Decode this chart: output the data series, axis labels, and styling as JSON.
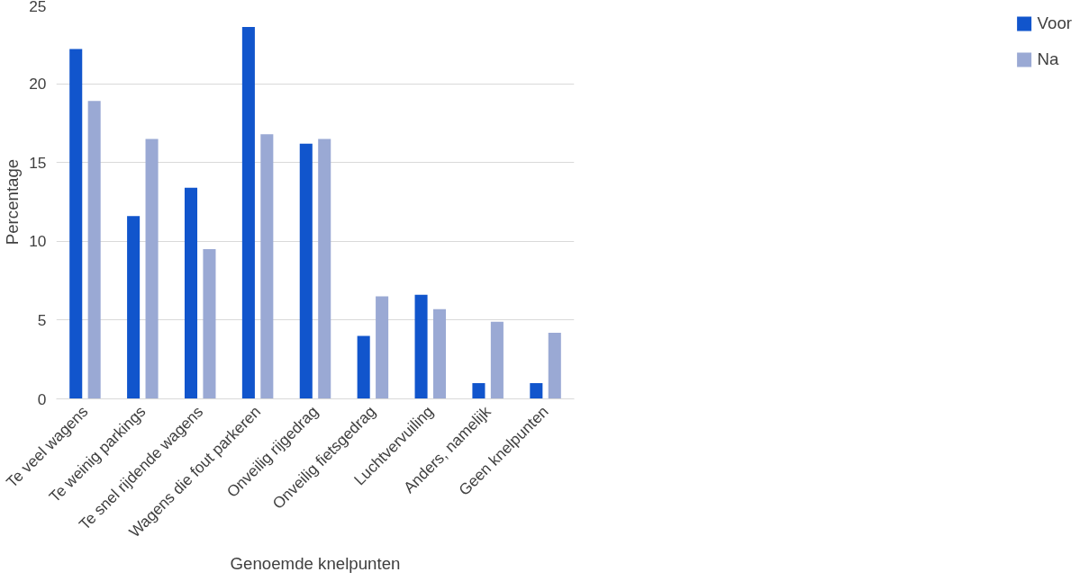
{
  "chart_data": {
    "type": "bar",
    "xlabel": "Genoemde knelpunten",
    "ylabel": "Percentage",
    "categories": [
      "Te veel wagens",
      "Te weinig parkings",
      "Te snel rijdende wagens",
      "Wagens die fout parkeren",
      "Onveilig rijgedrag",
      "Onveilig fietsgedrag",
      "Luchtvervuiling",
      "Anders, namelijk",
      "Geen knelpunten"
    ],
    "series": [
      {
        "name": "Voor",
        "color": "#1155cc",
        "values": [
          22.2,
          11.6,
          13.4,
          23.6,
          16.2,
          4.0,
          6.6,
          1.0,
          1.0
        ]
      },
      {
        "name": "Na",
        "color": "#9aa9d4",
        "values": [
          18.9,
          16.5,
          9.5,
          16.8,
          16.5,
          6.5,
          5.7,
          4.9,
          4.2
        ]
      }
    ],
    "ylim": [
      0,
      25
    ],
    "yticks": [
      0,
      5,
      10,
      15,
      20,
      25
    ],
    "grid": "y",
    "legend": "right"
  }
}
